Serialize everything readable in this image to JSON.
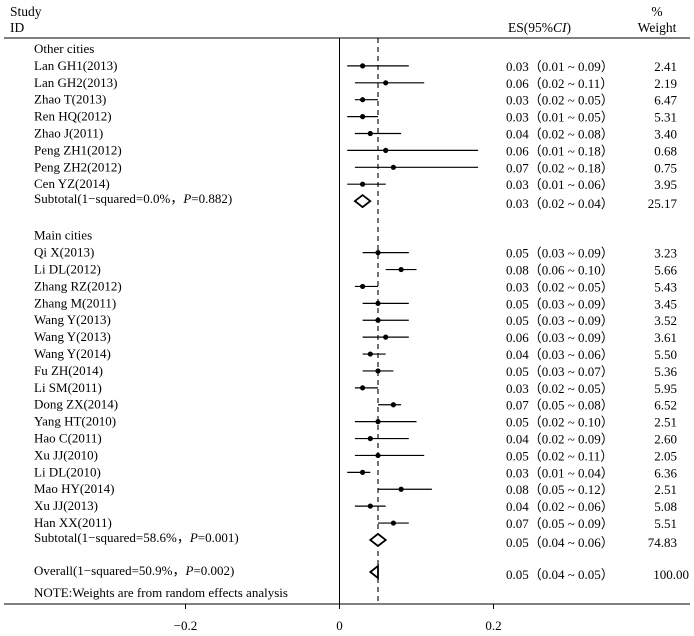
{
  "header": {
    "study_line1": "Study",
    "study_line2": "ID",
    "es_label": "ES(95%CI)",
    "weight_line1": "%",
    "weight_line2": "Weight"
  },
  "footer": {
    "note": "NOTE:Weights are from random effects analysis"
  },
  "chart_data": {
    "type": "forest",
    "xlim": [
      -0.3,
      0.3
    ],
    "x_ticks": [
      -0.2,
      0,
      0.2
    ],
    "tick_labels": [
      "−0.2",
      "0",
      "0.2"
    ],
    "null_line": 0,
    "pooled_line": 0.05,
    "groups": [
      {
        "name": "Other cities",
        "studies": [
          {
            "id": "Lan GH1(2013)",
            "es": 0.03,
            "lo": 0.01,
            "hi": 0.09,
            "es_text": "0.03（0.01 ~ 0.09）",
            "weight": "2.41"
          },
          {
            "id": "Lan GH2(2013)",
            "es": 0.06,
            "lo": 0.02,
            "hi": 0.11,
            "es_text": "0.06（0.02 ~ 0.11）",
            "weight": "2.19"
          },
          {
            "id": "Zhao T(2013)",
            "es": 0.03,
            "lo": 0.02,
            "hi": 0.05,
            "es_text": "0.03（0.02 ~ 0.05）",
            "weight": "6.47"
          },
          {
            "id": "Ren HQ(2012)",
            "es": 0.03,
            "lo": 0.01,
            "hi": 0.05,
            "es_text": "0.03（0.01 ~ 0.05）",
            "weight": "5.31"
          },
          {
            "id": "Zhao J(2011)",
            "es": 0.04,
            "lo": 0.02,
            "hi": 0.08,
            "es_text": "0.04（0.02 ~ 0.08）",
            "weight": "3.40"
          },
          {
            "id": "Peng ZH1(2012)",
            "es": 0.06,
            "lo": 0.01,
            "hi": 0.18,
            "es_text": "0.06（0.01 ~ 0.18）",
            "weight": "0.68"
          },
          {
            "id": "Peng ZH2(2012)",
            "es": 0.07,
            "lo": 0.02,
            "hi": 0.18,
            "es_text": "0.07（0.02 ~ 0.18）",
            "weight": "0.75"
          },
          {
            "id": "Cen YZ(2014)",
            "es": 0.03,
            "lo": 0.01,
            "hi": 0.06,
            "es_text": "0.03（0.01 ~ 0.06）",
            "weight": "3.95"
          }
        ],
        "subtotal": {
          "label": "Subtotal(1−squared=0.0%，P=0.882)",
          "label_main": "Subtotal(1−squared=0.0%，",
          "label_p": "P",
          "label_rest": "=0.882)",
          "es": 0.03,
          "lo": 0.02,
          "hi": 0.04,
          "es_text": "0.03（0.02 ~ 0.04）",
          "weight": "25.17"
        }
      },
      {
        "name": "Main cities",
        "studies": [
          {
            "id": "Qi X(2013)",
            "es": 0.05,
            "lo": 0.03,
            "hi": 0.09,
            "es_text": "0.05（0.03 ~ 0.09）",
            "weight": "3.23"
          },
          {
            "id": "Li DL(2012)",
            "es": 0.08,
            "lo": 0.06,
            "hi": 0.1,
            "es_text": "0.08（0.06 ~ 0.10）",
            "weight": "5.66"
          },
          {
            "id": "Zhang RZ(2012)",
            "es": 0.03,
            "lo": 0.02,
            "hi": 0.05,
            "es_text": "0.03（0.02 ~ 0.05）",
            "weight": "5.43"
          },
          {
            "id": "Zhang M(2011)",
            "es": 0.05,
            "lo": 0.03,
            "hi": 0.09,
            "es_text": "0.05（0.03 ~ 0.09）",
            "weight": "3.45"
          },
          {
            "id": "Wang Y(2013)",
            "es": 0.05,
            "lo": 0.03,
            "hi": 0.09,
            "es_text": "0.05（0.03 ~ 0.09）",
            "weight": "3.52"
          },
          {
            "id": "Wang Y(2013)",
            "es": 0.06,
            "lo": 0.03,
            "hi": 0.09,
            "es_text": "0.06（0.03 ~ 0.09）",
            "weight": "3.61"
          },
          {
            "id": "Wang Y(2014)",
            "es": 0.04,
            "lo": 0.03,
            "hi": 0.06,
            "es_text": "0.04（0.03 ~ 0.06）",
            "weight": "5.50"
          },
          {
            "id": "Fu ZH(2014)",
            "es": 0.05,
            "lo": 0.03,
            "hi": 0.07,
            "es_text": "0.05（0.03 ~ 0.07）",
            "weight": "5.36"
          },
          {
            "id": "Li SM(2011)",
            "es": 0.03,
            "lo": 0.02,
            "hi": 0.05,
            "es_text": "0.03（0.02 ~ 0.05）",
            "weight": "5.95"
          },
          {
            "id": "Dong ZX(2014)",
            "es": 0.07,
            "lo": 0.05,
            "hi": 0.08,
            "es_text": "0.07（0.05 ~ 0.08）",
            "weight": "6.52"
          },
          {
            "id": "Yang HT(2010)",
            "es": 0.05,
            "lo": 0.02,
            "hi": 0.1,
            "es_text": "0.05（0.02 ~ 0.10）",
            "weight": "2.51"
          },
          {
            "id": "Hao C(2011)",
            "es": 0.04,
            "lo": 0.02,
            "hi": 0.09,
            "es_text": "0.04（0.02 ~ 0.09）",
            "weight": "2.60"
          },
          {
            "id": "Xu JJ(2010)",
            "es": 0.05,
            "lo": 0.02,
            "hi": 0.11,
            "es_text": "0.05（0.02 ~ 0.11）",
            "weight": "2.05"
          },
          {
            "id": "Li DL(2010)",
            "es": 0.03,
            "lo": 0.01,
            "hi": 0.04,
            "es_text": "0.03（0.01 ~ 0.04）",
            "weight": "6.36"
          },
          {
            "id": "Mao HY(2014)",
            "es": 0.08,
            "lo": 0.05,
            "hi": 0.12,
            "es_text": "0.08（0.05 ~ 0.12）",
            "weight": "2.51"
          },
          {
            "id": "Xu JJ(2013)",
            "es": 0.04,
            "lo": 0.02,
            "hi": 0.06,
            "es_text": "0.04（0.02 ~ 0.06）",
            "weight": "5.08"
          },
          {
            "id": "Han XX(2011)",
            "es": 0.07,
            "lo": 0.05,
            "hi": 0.09,
            "es_text": "0.07（0.05 ~ 0.09）",
            "weight": "5.51"
          }
        ],
        "subtotal": {
          "label": "Subtotal(1−squared=58.6%，P=0.001)",
          "label_main": "Subtotal(1−squared=58.6%，",
          "label_p": "P",
          "label_rest": "=0.001)",
          "es": 0.05,
          "lo": 0.04,
          "hi": 0.06,
          "es_text": "0.05（0.04 ~ 0.06）",
          "weight": "74.83"
        }
      }
    ],
    "overall": {
      "label": "Overall(1−squared=50.9%，P=0.002)",
      "label_main": "Overall(1−squared=50.9%，",
      "label_p": "P",
      "label_rest": "=0.002)",
      "es": 0.05,
      "lo": 0.04,
      "hi": 0.05,
      "es_text": "0.05（0.04 ~ 0.05）",
      "weight": "100.00"
    }
  }
}
